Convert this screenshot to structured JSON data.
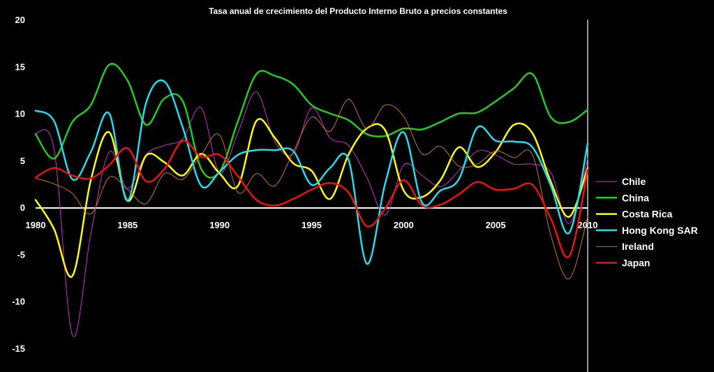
{
  "chart_data": {
    "type": "line",
    "title": "Tasa anual de crecimiento del Producto Interno Bruto a precios constantes",
    "xlabel": "",
    "ylabel": "",
    "xlim": [
      1980,
      2010
    ],
    "ylim": [
      -15,
      20
    ],
    "x_ticks": [
      "1980",
      "1985",
      "1990",
      "1995",
      "2000",
      "2005",
      "2010"
    ],
    "y_ticks": [
      "20",
      "15",
      "10",
      "5",
      "0",
      "-5",
      "-10",
      "-15"
    ],
    "grid": false,
    "legend_position": "right",
    "x": [
      1980,
      1981,
      1982,
      1983,
      1984,
      1985,
      1986,
      1987,
      1988,
      1989,
      1990,
      1991,
      1992,
      1993,
      1994,
      1995,
      1996,
      1997,
      1998,
      1999,
      2000,
      2001,
      2002,
      2003,
      2004,
      2005,
      2006,
      2007,
      2008,
      2009,
      2010
    ],
    "series": [
      {
        "name": "Chile",
        "color": "#cc33cc",
        "width": 1,
        "values": [
          7.9,
          6.2,
          -13.6,
          -2.8,
          5.9,
          2.0,
          5.6,
          6.6,
          7.3,
          10.6,
          3.7,
          8.0,
          12.3,
          7.0,
          5.7,
          10.6,
          7.4,
          6.6,
          3.2,
          -0.8,
          4.5,
          3.4,
          2.2,
          3.9,
          6.0,
          5.6,
          4.6,
          4.6,
          3.7,
          -1.7,
          5.2
        ]
      },
      {
        "name": "China",
        "color": "#22cc22",
        "width": 2.5,
        "values": [
          7.8,
          5.2,
          9.1,
          10.9,
          15.2,
          13.5,
          8.8,
          11.6,
          11.3,
          4.1,
          3.8,
          9.2,
          14.2,
          14.0,
          13.1,
          10.9,
          10.0,
          9.3,
          7.8,
          7.6,
          8.4,
          8.3,
          9.1,
          10.0,
          10.1,
          11.3,
          12.7,
          14.2,
          9.6,
          9.1,
          10.4
        ]
      },
      {
        "name": "Costa Rica",
        "color": "#ffff00",
        "width": 2.5,
        "values": [
          0.8,
          -2.3,
          -7.3,
          2.9,
          8.0,
          0.7,
          5.5,
          4.8,
          3.4,
          5.7,
          3.6,
          2.3,
          9.2,
          7.4,
          4.7,
          3.9,
          0.9,
          5.6,
          8.4,
          8.2,
          1.8,
          1.1,
          2.9,
          6.4,
          4.3,
          5.9,
          8.8,
          7.9,
          2.7,
          -1.0,
          4.2
        ]
      },
      {
        "name": "Hong Kong SAR",
        "color": "#22ddee",
        "width": 2.5,
        "values": [
          10.3,
          9.2,
          3.0,
          5.9,
          10.0,
          0.7,
          11.1,
          13.4,
          8.5,
          2.3,
          3.8,
          5.6,
          6.1,
          6.1,
          6.0,
          2.4,
          4.2,
          5.1,
          -6.0,
          2.6,
          8.0,
          0.5,
          1.8,
          3.0,
          8.5,
          7.1,
          7.0,
          6.4,
          2.3,
          -2.7,
          6.8
        ]
      },
      {
        "name": "Ireland",
        "color": "#cc7722",
        "width": 1,
        "values": [
          3.1,
          2.5,
          1.5,
          -0.7,
          3.2,
          1.9,
          0.4,
          3.6,
          3.0,
          5.6,
          7.7,
          1.6,
          3.6,
          2.3,
          5.9,
          9.6,
          8.1,
          11.5,
          8.4,
          10.9,
          9.7,
          5.7,
          6.5,
          4.4,
          4.6,
          6.0,
          5.3,
          5.6,
          -3.0,
          -7.6,
          -1.0
        ]
      },
      {
        "name": "Japan",
        "color": "#ee1111",
        "width": 2.5,
        "values": [
          3.2,
          4.2,
          3.4,
          3.1,
          4.5,
          6.3,
          2.8,
          4.1,
          7.1,
          5.4,
          5.6,
          3.3,
          0.8,
          0.2,
          0.9,
          1.9,
          2.6,
          1.6,
          -2.0,
          -0.1,
          2.9,
          0.2,
          0.3,
          1.4,
          2.7,
          1.9,
          2.0,
          2.4,
          -1.2,
          -5.2,
          4.0
        ]
      }
    ]
  }
}
